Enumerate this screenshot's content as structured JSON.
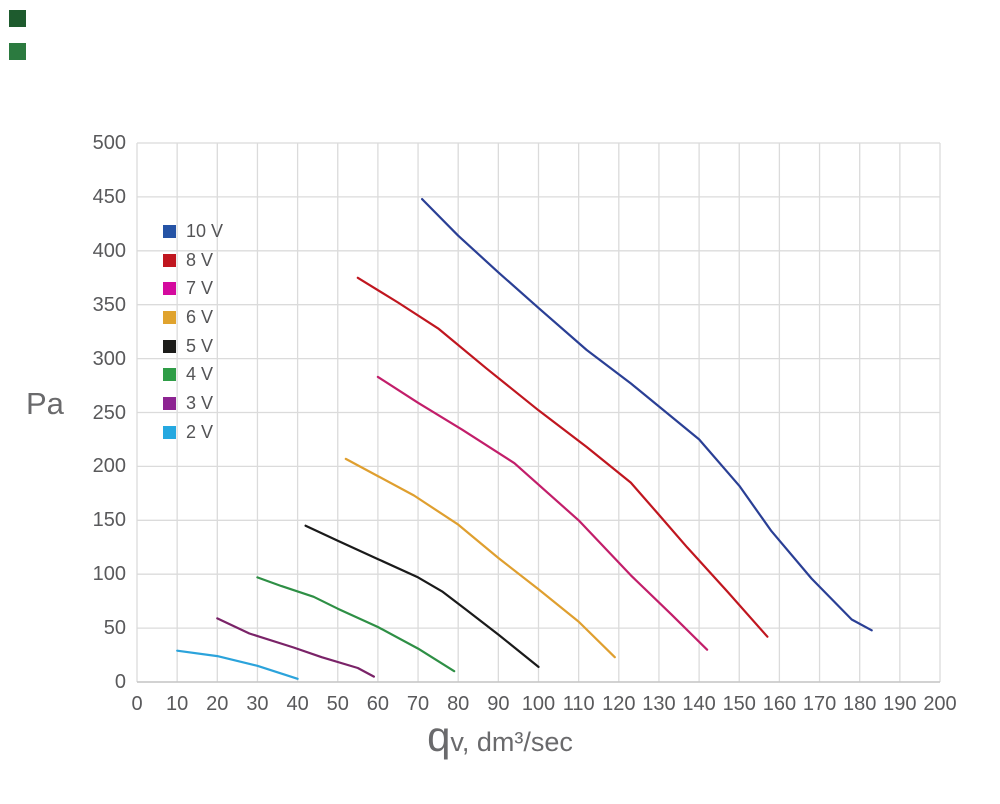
{
  "page": {
    "background": "#ffffff"
  },
  "decorations": {
    "squares": [
      {
        "name": "green-square-top",
        "color": "#1e5b2e"
      },
      {
        "name": "green-square-bottom",
        "color": "#2b7a3f"
      }
    ]
  },
  "styles": {
    "grid_color": "#dbdbdb",
    "axis_line_color": "#c6c6c6",
    "tick_color": "#59595b",
    "axis_title_color": "#6a6a6c"
  },
  "chart_data": {
    "type": "line",
    "title": "",
    "ylabel": "Pa",
    "xlabel_big": "q",
    "xlabel_rest": "v, dm³/sec",
    "xlim": [
      0,
      200
    ],
    "ylim": [
      0,
      500
    ],
    "x_ticks": [
      0,
      10,
      20,
      30,
      40,
      50,
      60,
      70,
      80,
      90,
      100,
      110,
      120,
      130,
      140,
      150,
      160,
      170,
      180,
      190,
      200
    ],
    "y_ticks": [
      0,
      50,
      100,
      150,
      200,
      250,
      300,
      350,
      400,
      450,
      500
    ],
    "grid": true,
    "legend_position": "upper-left-inside",
    "series": [
      {
        "name": "10 V",
        "color": "#2553a5",
        "line_color": "#2a3f95",
        "points": [
          [
            71,
            448
          ],
          [
            80,
            414
          ],
          [
            90,
            380
          ],
          [
            100,
            347
          ],
          [
            112,
            308
          ],
          [
            123,
            277
          ],
          [
            140,
            225
          ],
          [
            150,
            182
          ],
          [
            158,
            140
          ],
          [
            168,
            96
          ],
          [
            178,
            58
          ],
          [
            183,
            48
          ]
        ]
      },
      {
        "name": "8 V",
        "color": "#c0161f",
        "line_color": "#c0161f",
        "points": [
          [
            55,
            375
          ],
          [
            65,
            352
          ],
          [
            75,
            328
          ],
          [
            87,
            291
          ],
          [
            100,
            252
          ],
          [
            112,
            218
          ],
          [
            123,
            185
          ],
          [
            130,
            155
          ],
          [
            137,
            125
          ],
          [
            147,
            84
          ],
          [
            157,
            42
          ]
        ]
      },
      {
        "name": "7 V",
        "color": "#d40a9e",
        "line_color": "#c21e6a",
        "points": [
          [
            60,
            283
          ],
          [
            70,
            259
          ],
          [
            81,
            234
          ],
          [
            94,
            203
          ],
          [
            110,
            150
          ],
          [
            123,
            99
          ],
          [
            133,
            63
          ],
          [
            142,
            30
          ]
        ]
      },
      {
        "name": "6 V",
        "color": "#e0a32e",
        "line_color": "#df9f2f",
        "points": [
          [
            52,
            207
          ],
          [
            60,
            191
          ],
          [
            69,
            173
          ],
          [
            80,
            146
          ],
          [
            90,
            115
          ],
          [
            100,
            86
          ],
          [
            110,
            56
          ],
          [
            119,
            23
          ]
        ]
      },
      {
        "name": "5 V",
        "color": "#1c1c1a",
        "line_color": "#1a1a1a",
        "points": [
          [
            42,
            145
          ],
          [
            50,
            131
          ],
          [
            60,
            114
          ],
          [
            70,
            97
          ],
          [
            76,
            84
          ],
          [
            82,
            67
          ],
          [
            90,
            44
          ],
          [
            100,
            14
          ]
        ]
      },
      {
        "name": "4 V",
        "color": "#2f9d47",
        "line_color": "#2e8f45",
        "points": [
          [
            30,
            97
          ],
          [
            36,
            89
          ],
          [
            44,
            79
          ],
          [
            50,
            68
          ],
          [
            60,
            51
          ],
          [
            70,
            31
          ],
          [
            79,
            10
          ]
        ]
      },
      {
        "name": "3 V",
        "color": "#8d2492",
        "line_color": "#7a2368",
        "points": [
          [
            20,
            59
          ],
          [
            28,
            45
          ],
          [
            39,
            32
          ],
          [
            46,
            23
          ],
          [
            55,
            13
          ],
          [
            59,
            5
          ]
        ]
      },
      {
        "name": "2 V",
        "color": "#25a8e0",
        "line_color": "#2ba3db",
        "points": [
          [
            10,
            29
          ],
          [
            20,
            24
          ],
          [
            30,
            15
          ],
          [
            40,
            3
          ]
        ]
      }
    ]
  }
}
